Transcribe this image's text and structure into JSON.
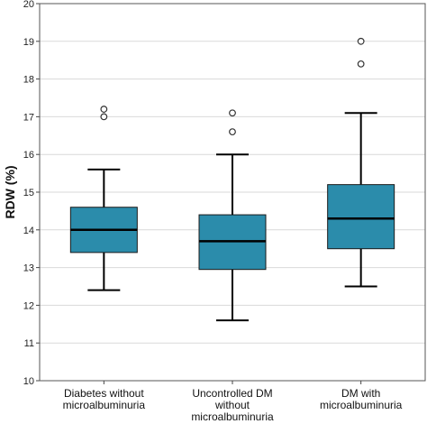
{
  "chart_data": {
    "type": "box",
    "title": "",
    "xlabel": "",
    "ylabel": "RDW (%)",
    "ylim": [
      10,
      20
    ],
    "yticks": [
      "10",
      "11",
      "12",
      "13",
      "14",
      "15",
      "16",
      "17",
      "18",
      "19",
      "20"
    ],
    "grid": true,
    "box_color": "#2b8cab",
    "categories": [
      [
        "Diabetes without",
        "microalbuminuria"
      ],
      [
        "Uncontrolled DM",
        "without",
        "microalbuminuria"
      ],
      [
        "DM with",
        "microalbuminuria"
      ]
    ],
    "boxes": [
      {
        "whisker_low": 12.4,
        "q1": 13.4,
        "median": 14.0,
        "q3": 14.6,
        "whisker_high": 15.6,
        "outliers": [
          17.0,
          17.2
        ]
      },
      {
        "whisker_low": 11.6,
        "q1": 12.95,
        "median": 13.7,
        "q3": 14.4,
        "whisker_high": 16.0,
        "outliers": [
          16.6,
          17.1
        ]
      },
      {
        "whisker_low": 12.5,
        "q1": 13.5,
        "median": 14.3,
        "q3": 15.2,
        "whisker_high": 17.1,
        "outliers": [
          18.4,
          19.0
        ]
      }
    ]
  }
}
